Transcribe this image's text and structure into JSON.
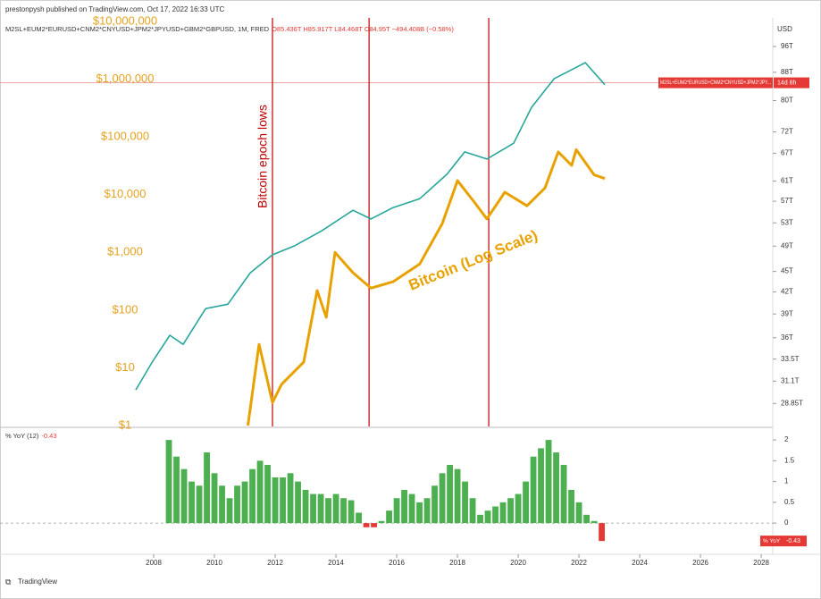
{
  "header": {
    "publisher": "prestonpysh published on TradingView.com, Oct 17, 2022 16:33 UTC",
    "footer": "TradingView"
  },
  "chart_data": [
    {
      "type": "line",
      "legend_suffix": ", 1M, FRED",
      "ohlc": "O85.436T H85.917T L84.468T C84.95T −494.408B (−0.58%)",
      "y_unit": "USD",
      "price_label": "M2SL+EUM2*EURUSD+CNM2*CNYUSD+JPM2*JPY...",
      "countdown": "14d 8h",
      "price_line": 84.95,
      "annotation": "Bitcoin epoch lows",
      "epoch_lows": [
        2011.91,
        2015.09,
        2019.03
      ],
      "xlim": [
        2002.94,
        2028.38
      ],
      "ylim": [
        26.7,
        105.7
      ],
      "yscale": "log",
      "yticks": [
        {
          "value": 96,
          "label": "96T"
        },
        {
          "value": 88,
          "label": "88T"
        },
        {
          "value": 80,
          "label": "80T"
        },
        {
          "value": 72,
          "label": "72T"
        },
        {
          "value": 67,
          "label": "67T"
        },
        {
          "value": 61,
          "label": "61T"
        },
        {
          "value": 57,
          "label": "57T"
        },
        {
          "value": 53,
          "label": "53T"
        },
        {
          "value": 49,
          "label": "49T"
        },
        {
          "value": 45,
          "label": "45T"
        },
        {
          "value": 42,
          "label": "42T"
        },
        {
          "value": 39,
          "label": "39T"
        },
        {
          "value": 36,
          "label": "36T"
        },
        {
          "value": 33.5,
          "label": "33.5T"
        },
        {
          "value": 31.1,
          "label": "31.1T"
        },
        {
          "value": 28.85,
          "label": "28.85T"
        }
      ],
      "y2lim": [
        0.965,
        11500000
      ],
      "y2scale": "log",
      "y2ticks": [
        {
          "value": 1,
          "label": "$1"
        },
        {
          "value": 10,
          "label": "$10"
        },
        {
          "value": 100,
          "label": "$100"
        },
        {
          "value": 1000,
          "label": "$1,000"
        },
        {
          "value": 10000,
          "label": "$10,000"
        },
        {
          "value": 100000,
          "label": "$100,000"
        },
        {
          "value": 1000000,
          "label": "$1,000,000"
        },
        {
          "value": 10000000,
          "label": "$10,000,000"
        }
      ],
      "series": [
        {
          "name": "M2SL+EUM2*EURUSD+CNM2*CNYUSD+JPM2*JPYUSD+GBM2*GBPUSD",
          "color": "#26a69a",
          "x": [
            2007.41,
            2007.94,
            2008.53,
            2008.97,
            2009.71,
            2010.44,
            2011.18,
            2011.91,
            2012.65,
            2013.53,
            2014.56,
            2015.15,
            2015.88,
            2016.76,
            2017.65,
            2018.24,
            2018.97,
            2019.85,
            2020.44,
            2021.18,
            2022.21,
            2022.85
          ],
          "values": [
            30.2,
            33.1,
            36.3,
            35.2,
            39.7,
            40.3,
            44.8,
            47.6,
            49.1,
            51.6,
            55.3,
            53.7,
            55.8,
            57.5,
            62.4,
            67.3,
            65.7,
            69.3,
            78.2,
            86.1,
            90.9,
            84.4
          ]
        },
        {
          "name": "Bitcoin (Log Scale)",
          "color": "#e8a200",
          "axis": "y2",
          "x": [
            2011.1,
            2011.47,
            2011.91,
            2012.21,
            2012.94,
            2013.38,
            2013.68,
            2013.97,
            2014.56,
            2015.15,
            2015.88,
            2016.76,
            2017.5,
            2018.0,
            2018.53,
            2018.97,
            2019.56,
            2020.29,
            2020.88,
            2021.32,
            2021.76,
            2021.91,
            2022.5,
            2022.85
          ],
          "values": [
            1,
            25.6,
            2.5,
            5.2,
            12.6,
            218,
            75,
            1000,
            445,
            240,
            310,
            630,
            3160,
            17400,
            7700,
            3800,
            11000,
            6400,
            13000,
            55000,
            32000,
            60000,
            22000,
            19000
          ]
        }
      ]
    },
    {
      "type": "bar",
      "legend": "% YoY (12)",
      "axis_label": "% YoY",
      "colors": {
        "up": "#4caf50",
        "down": "#e53935"
      },
      "xlim": [
        2002.94,
        2028.38
      ],
      "xticks": [
        2008,
        2010,
        2012,
        2014,
        2016,
        2018,
        2020,
        2022,
        2024,
        2026,
        2028
      ],
      "ylim": [
        -0.75,
        2.26
      ],
      "yticks": [
        0,
        0.5,
        1,
        1.5,
        2
      ],
      "x": [
        2008.5,
        2008.75,
        2009.0,
        2009.25,
        2009.5,
        2009.75,
        2010.0,
        2010.25,
        2010.5,
        2010.75,
        2011.0,
        2011.25,
        2011.5,
        2011.75,
        2012.0,
        2012.25,
        2012.5,
        2012.75,
        2013.0,
        2013.25,
        2013.5,
        2013.75,
        2014.0,
        2014.25,
        2014.5,
        2014.75,
        2015.0,
        2015.25,
        2015.5,
        2015.75,
        2016.0,
        2016.25,
        2016.5,
        2016.75,
        2017.0,
        2017.25,
        2017.5,
        2017.75,
        2018.0,
        2018.25,
        2018.5,
        2018.75,
        2019.0,
        2019.25,
        2019.5,
        2019.75,
        2020.0,
        2020.25,
        2020.5,
        2020.75,
        2021.0,
        2021.25,
        2021.5,
        2021.75,
        2022.0,
        2022.25,
        2022.5,
        2022.75
      ],
      "values": [
        2.0,
        1.6,
        1.3,
        1.0,
        0.9,
        1.7,
        1.2,
        0.9,
        0.6,
        0.9,
        1.0,
        1.3,
        1.5,
        1.4,
        1.1,
        1.1,
        1.2,
        1.0,
        0.8,
        0.7,
        0.7,
        0.6,
        0.7,
        0.6,
        0.55,
        0.25,
        -0.1,
        -0.1,
        0.05,
        0.3,
        0.6,
        0.8,
        0.7,
        0.5,
        0.6,
        0.9,
        1.2,
        1.4,
        1.3,
        1.0,
        0.6,
        0.2,
        0.3,
        0.4,
        0.5,
        0.6,
        0.7,
        1.0,
        1.6,
        1.8,
        2.0,
        1.7,
        1.4,
        0.8,
        0.5,
        0.2,
        0.05,
        -0.43
      ]
    }
  ]
}
